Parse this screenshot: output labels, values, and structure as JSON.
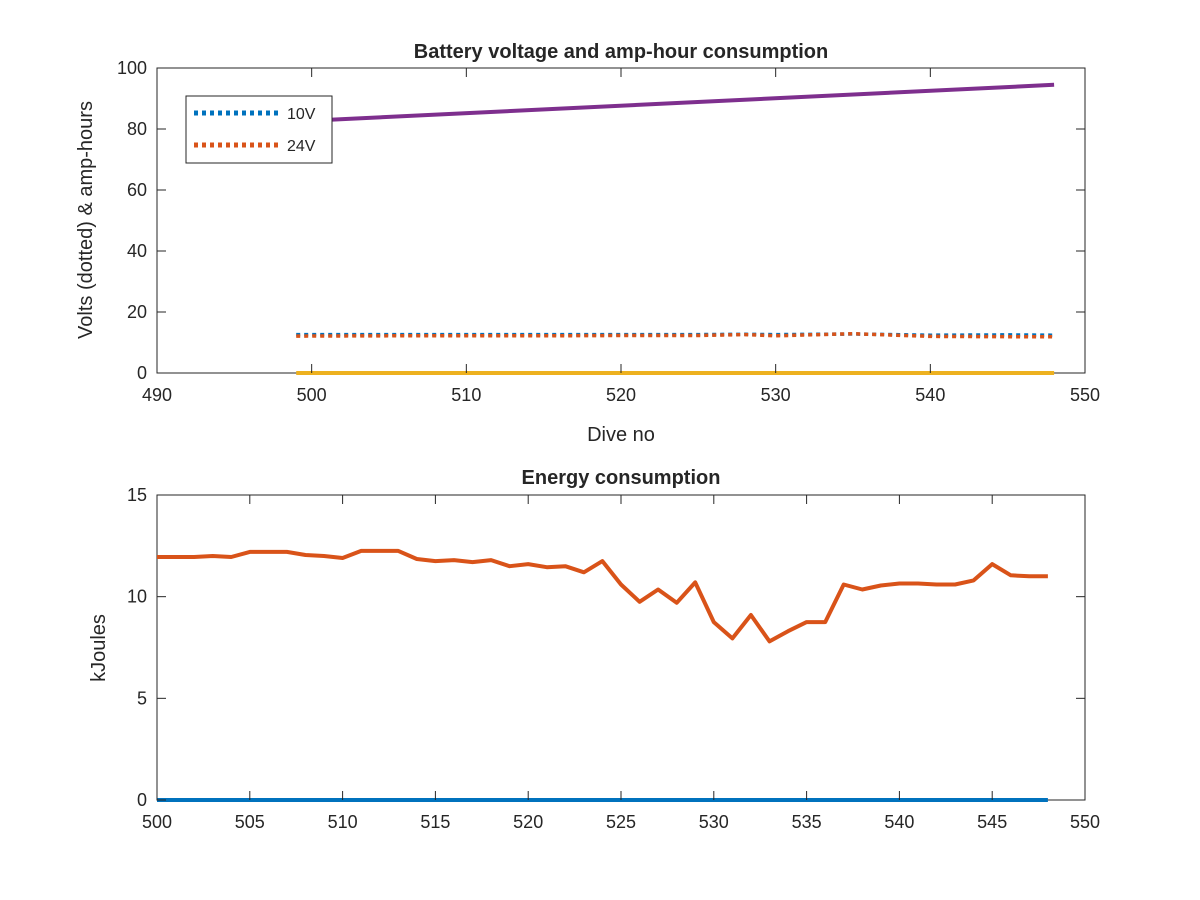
{
  "chart_data": [
    {
      "type": "line",
      "title": "Battery voltage and amp-hour consumption",
      "xlabel": "Dive no",
      "ylabel": "Volts (dotted) & amp-hours",
      "xlim": [
        490,
        550
      ],
      "ylim": [
        0,
        100
      ],
      "xticks": [
        490,
        500,
        510,
        520,
        530,
        540,
        550
      ],
      "yticks": [
        0,
        20,
        40,
        60,
        80,
        100
      ],
      "grid": false,
      "legend": {
        "position": "top-left",
        "entries": [
          "10V",
          "24V"
        ]
      },
      "series": [
        {
          "name": "10V",
          "color": "#0072BD",
          "style": "dotted",
          "x": [
            499,
            505,
            510,
            515,
            520,
            525,
            528,
            530,
            535,
            540,
            545,
            548
          ],
          "y": [
            12.6,
            12.6,
            12.6,
            12.6,
            12.6,
            12.6,
            12.7,
            12.6,
            12.8,
            12.4,
            12.5,
            12.4
          ]
        },
        {
          "name": "24V",
          "color": "#D95319",
          "style": "dotted",
          "x": [
            499,
            505,
            510,
            515,
            520,
            525,
            528,
            530,
            535,
            540,
            545,
            548
          ],
          "y": [
            12.1,
            12.2,
            12.2,
            12.2,
            12.3,
            12.3,
            12.6,
            12.2,
            12.9,
            12.0,
            11.9,
            11.9
          ]
        },
        {
          "color": "#7E2F8E",
          "style": "solid",
          "x": [
            499,
            548
          ],
          "y": [
            82.5,
            94.5
          ]
        },
        {
          "color": "#EDB120",
          "style": "solid",
          "x": [
            499,
            548
          ],
          "y": [
            0,
            0
          ]
        }
      ]
    },
    {
      "type": "line",
      "title": "Energy consumption",
      "xlabel": "",
      "ylabel": "kJoules",
      "xlim": [
        500,
        550
      ],
      "ylim": [
        0,
        15
      ],
      "xticks": [
        500,
        505,
        510,
        515,
        520,
        525,
        530,
        535,
        540,
        545,
        550
      ],
      "yticks": [
        0,
        5,
        10,
        15
      ],
      "grid": false,
      "series": [
        {
          "color": "#0072BD",
          "style": "solid",
          "x": [
            500,
            548
          ],
          "y": [
            0,
            0
          ]
        },
        {
          "color": "#D95319",
          "style": "solid",
          "x": [
            500,
            501,
            502,
            503,
            504,
            505,
            506,
            507,
            508,
            509,
            510,
            511,
            512,
            513,
            514,
            515,
            516,
            517,
            518,
            519,
            520,
            521,
            522,
            523,
            524,
            525,
            526,
            527,
            528,
            529,
            530,
            531,
            532,
            533,
            534,
            535,
            536,
            537,
            538,
            539,
            540,
            541,
            542,
            543,
            544,
            545,
            546,
            547,
            548
          ],
          "y": [
            11.95,
            11.95,
            11.95,
            12.0,
            11.95,
            12.2,
            12.2,
            12.2,
            12.05,
            12.0,
            11.9,
            12.25,
            12.25,
            12.25,
            11.85,
            11.75,
            11.8,
            11.7,
            11.8,
            11.5,
            11.6,
            11.45,
            11.5,
            11.2,
            11.75,
            10.6,
            9.75,
            10.35,
            9.7,
            10.7,
            8.75,
            7.95,
            9.1,
            7.8,
            8.3,
            8.75,
            8.75,
            10.6,
            10.35,
            10.55,
            10.65,
            10.65,
            10.6,
            10.6,
            10.8,
            11.6,
            11.05,
            11.0,
            11.0
          ]
        }
      ]
    }
  ]
}
